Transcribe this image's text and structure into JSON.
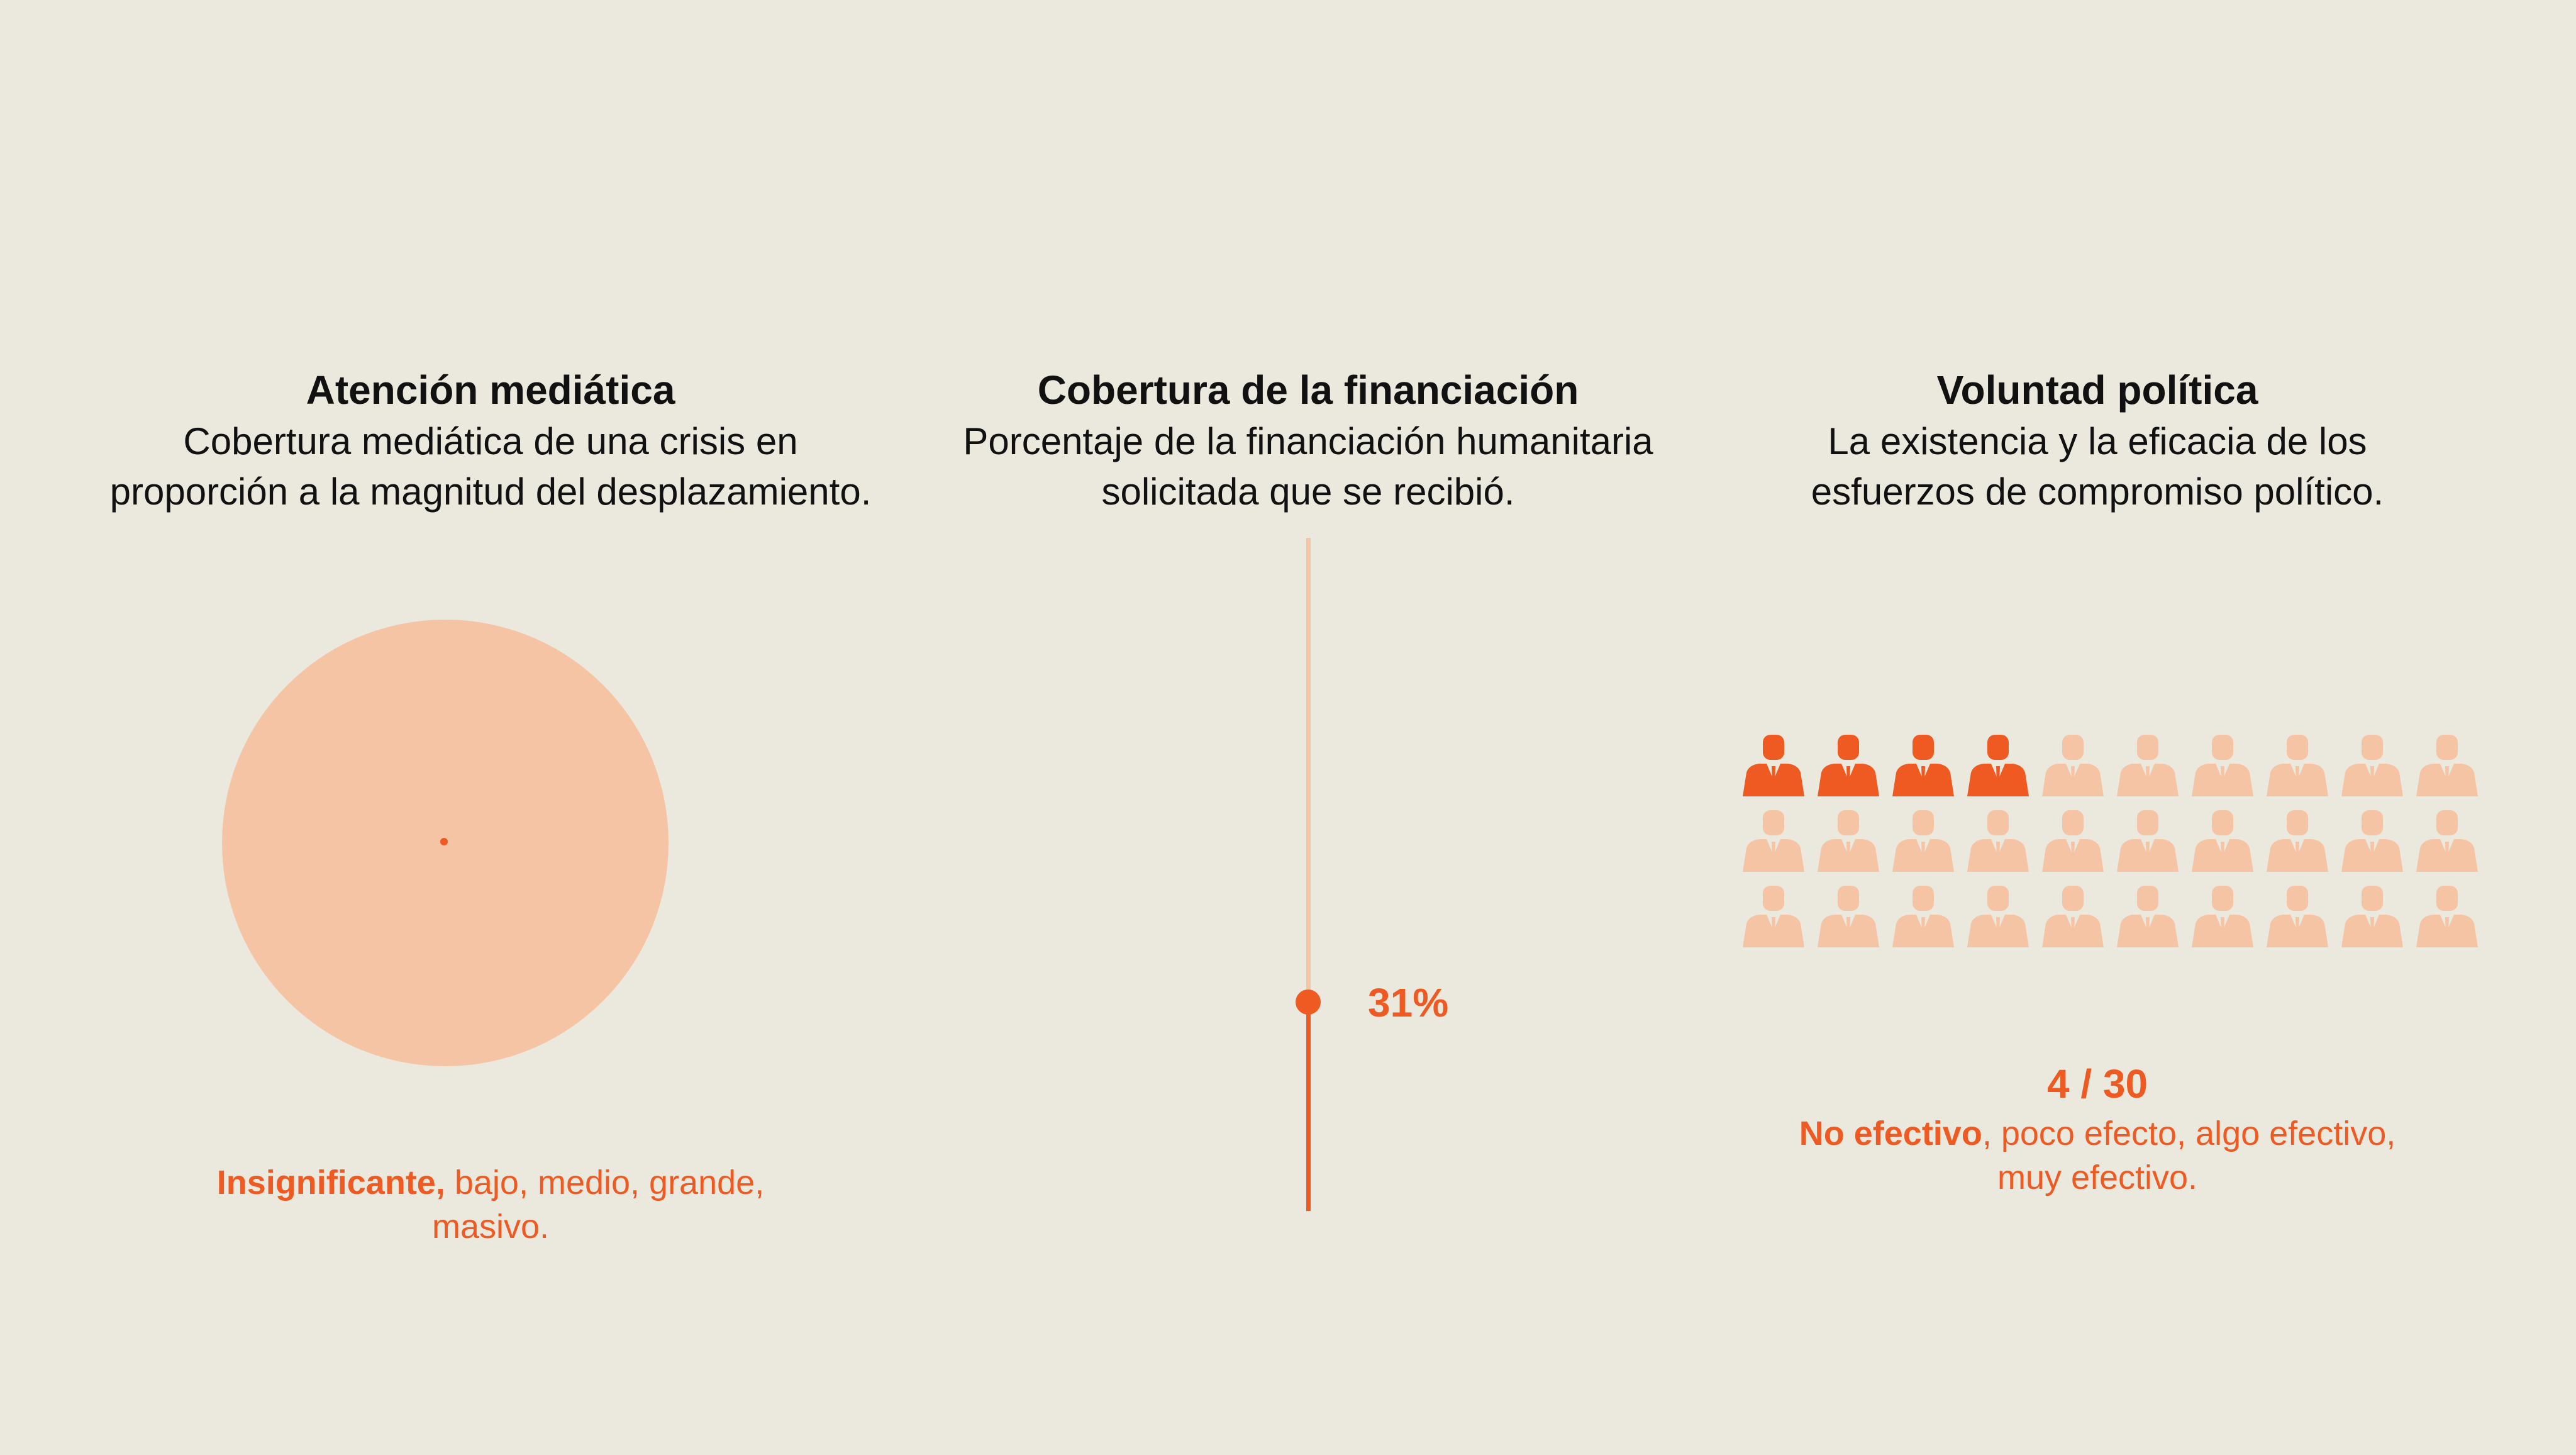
{
  "colors": {
    "background": "#ebe8dd",
    "accent": "#ef5a23",
    "accent_light": "#f5c4a5",
    "text": "#111111"
  },
  "media_attention": {
    "title": "Atención mediática",
    "description_lines": [
      "Cobertura mediática de una crisis en",
      "proporción a la magnitud del desplazamiento."
    ],
    "caption": {
      "selected": "Insignificante,",
      "rest_line1": " bajo, medio, grande,",
      "rest_line2": "masivo."
    }
  },
  "funding_coverage": {
    "title": "Cobertura de la financiación",
    "description_lines": [
      "Porcentaje de la financiación humanitaria",
      "solicitada que se recibió."
    ],
    "value_percent": 31,
    "value_label": "31%"
  },
  "political_will": {
    "title": "Voluntad política",
    "description_lines": [
      "La existencia y la eficacia de los",
      "esfuerzos de compromiso político."
    ],
    "score": 4,
    "total": 30,
    "score_label": "4 / 30",
    "caption": {
      "selected": "No efectivo",
      "rest_line1": ", poco efecto, algo efectivo,",
      "rest_line2": "muy efectivo."
    },
    "person_icon": "person-suit-icon"
  }
}
